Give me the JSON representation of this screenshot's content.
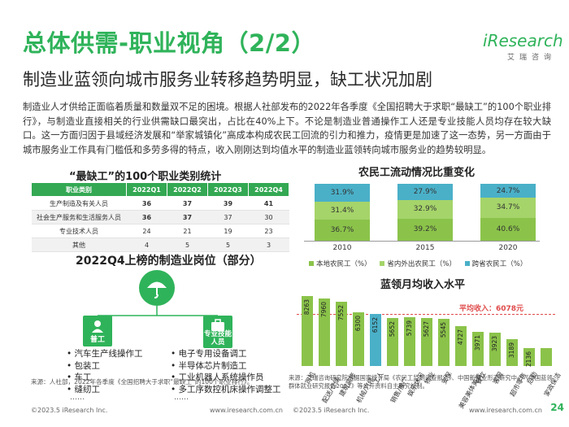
{
  "header": {
    "title": "总体供需-职业视角（2/2）",
    "subtitle": "制造业蓝领向城市服务业转移趋势明显，缺工状况加剧",
    "logo_text_i": "i",
    "logo_text": "Research",
    "logo_cn": "艾瑞咨询"
  },
  "body_text": "制造业人才供给正面临着质量和数量双不足的困境。根据人社部发布的2022年各季度《全国招聘大于求职“最缺工”的100个职业排行》，与制造业直接相关的行业供需缺口最突出，占比在40%上下。不论是制造业普通操作工人还是专业技能人员均存在较大缺口。这一方面归因于县域经济发展和“举家城镇化”高成本构成农民工回流的引力和推力，疫情更是加速了这一态势，另一方面由于城市服务业工作具有门槛低和多劳多得的特点，收入刚刚达到均值水平的制造业蓝领转向城市服务业的趋势较明显。",
  "table": {
    "title": "“最缺工”的100个职业类别统计",
    "headers": [
      "职业类别",
      "2022Q1",
      "2022Q2",
      "2022Q3",
      "2022Q4"
    ],
    "rows": [
      {
        "label": "生产制造及有关人员",
        "values": [
          "36",
          "37",
          "39",
          "41"
        ]
      },
      {
        "label": "社会生产服务和生活服务人员",
        "values": [
          "36",
          "37",
          "37",
          "30"
        ]
      },
      {
        "label": "专业技术人员",
        "values": [
          "24",
          "21",
          "19",
          "23"
        ]
      },
      {
        "label": "其他",
        "values": [
          "4",
          "5",
          "5",
          "3"
        ]
      }
    ]
  },
  "positions": {
    "title": "2022Q4上榜的制造业岗位（部分）",
    "general": {
      "label": "普工",
      "items": [
        "汽车生产线操作工",
        "包装工",
        "车工",
        "缝纫工"
      ],
      "more": "……"
    },
    "skilled": {
      "label": "专业技能人员",
      "items": [
        "电子专用设备调工",
        "半导体芯片制造工",
        "工业机器人系统操作员",
        "多工序数控机床操作调整工"
      ],
      "more": "……"
    }
  },
  "migration_chart": {
    "title": "农民工流动情况比重变化",
    "colors": {
      "local": "#8bc34a",
      "in_province": "#a5d46a",
      "cross_province": "#4ab0c8"
    },
    "legend": [
      "本地农民工（%）",
      "省内外出农民工（%）",
      "跨省农民工（%）"
    ],
    "chart_data": {
      "type": "bar",
      "stacked": true,
      "categories": [
        "2010",
        "2015",
        "2020"
      ],
      "series": [
        {
          "name": "本地农民工（%）",
          "values": [
            36.7,
            39.2,
            40.6
          ],
          "labels": [
            "36.7%",
            "39.2%",
            "40.6%"
          ]
        },
        {
          "name": "省内外出农民工（%）",
          "values": [
            31.4,
            32.9,
            34.7
          ],
          "labels": [
            "31.4%",
            "32.9%",
            "34.7%"
          ]
        },
        {
          "name": "跨省农民工（%）",
          "values": [
            31.9,
            27.9,
            24.7
          ],
          "labels": [
            "31.9%",
            "27.9%",
            "24.7%"
          ]
        }
      ]
    }
  },
  "wage_chart": {
    "title": "蓝领月均收入水平",
    "avg_label": "平均收入：6078元",
    "avg_value": 6078,
    "chart_data": {
      "type": "bar",
      "categories": [
        "司机",
        "配送/仓储",
        "建筑装修",
        "机械/汽修",
        "工人",
        "销售/推广",
        "娱乐休闲",
        "物业",
        "安保",
        "美容美体美发",
        "餐饮",
        "客服",
        "超市零售",
        "后勤",
        "家政保洁"
      ],
      "values": [
        8263,
        7960,
        7552,
        6300,
        6152,
        5652,
        5739,
        5627,
        5545,
        4727,
        3971,
        3923,
        3189,
        2136,
        2136
      ],
      "labels": [
        "8263",
        "7960",
        "7552",
        "6300",
        "6152",
        "5652",
        "5739",
        "5627",
        "5545",
        "4727",
        "3971",
        "3923",
        "3189",
        "2136",
        ""
      ],
      "highlight_index": 4
    }
  },
  "sources": {
    "left": "来源：人社部，2022年各季度《全国招聘大于求职“最缺工”的100个职业排行》。",
    "right": "来源：艾瑞咨询研究院根据国家统计局《农民工监测调查报告》、中国新就业形态研究中心《中国蓝领群体就业研究报告2022》等公开资料自主研究绘制。"
  },
  "footer": {
    "copyright": "©2023.5 iResearch Inc.",
    "site": "www.iresearch.com.cn",
    "page": "24"
  }
}
